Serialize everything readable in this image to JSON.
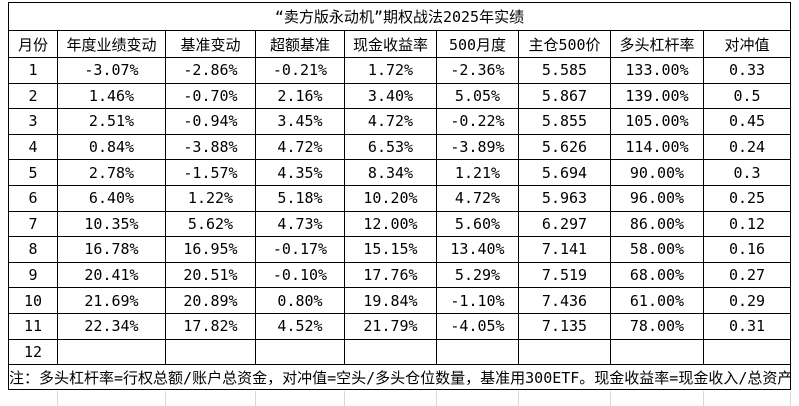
{
  "table": {
    "title": "“卖方版永动机”期权战法2025年实绩",
    "columns": [
      "月份",
      "年度业绩变动",
      "基准变动",
      "超额基准",
      "现金收益率",
      "500月度",
      "主仓500价",
      "多头杠杆率",
      "对冲值"
    ],
    "rows": [
      [
        "1",
        "-3.07%",
        "-2.86%",
        "-0.21%",
        "1.72%",
        "-2.36%",
        "5.585",
        "133.00%",
        "0.33"
      ],
      [
        "2",
        "1.46%",
        "-0.70%",
        "2.16%",
        "3.40%",
        "5.05%",
        "5.867",
        "139.00%",
        "0.5"
      ],
      [
        "3",
        "2.51%",
        "-0.94%",
        "3.45%",
        "4.72%",
        "-0.22%",
        "5.855",
        "105.00%",
        "0.45"
      ],
      [
        "4",
        "0.84%",
        "-3.88%",
        "4.72%",
        "6.53%",
        "-3.89%",
        "5.626",
        "114.00%",
        "0.24"
      ],
      [
        "5",
        "2.78%",
        "-1.57%",
        "4.35%",
        "8.34%",
        "1.21%",
        "5.694",
        "90.00%",
        "0.3"
      ],
      [
        "6",
        "6.40%",
        "1.22%",
        "5.18%",
        "10.20%",
        "4.72%",
        "5.963",
        "96.00%",
        "0.25"
      ],
      [
        "7",
        "10.35%",
        "5.62%",
        "4.73%",
        "12.00%",
        "5.60%",
        "6.297",
        "86.00%",
        "0.12"
      ],
      [
        "8",
        "16.78%",
        "16.95%",
        "-0.17%",
        "15.15%",
        "13.40%",
        "7.141",
        "58.00%",
        "0.16"
      ],
      [
        "9",
        "20.41%",
        "20.51%",
        "-0.10%",
        "17.76%",
        "5.29%",
        "7.519",
        "68.00%",
        "0.27"
      ],
      [
        "10",
        "21.69%",
        "20.89%",
        "0.80%",
        "19.84%",
        "-1.10%",
        "7.436",
        "61.00%",
        "0.29"
      ],
      [
        "11",
        "22.34%",
        "17.82%",
        "4.52%",
        "21.79%",
        "-4.05%",
        "7.135",
        "78.00%",
        "0.31"
      ],
      [
        "12",
        "",
        "",
        "",
        "",
        "",
        "",
        "",
        ""
      ]
    ],
    "note": "注：多头杠杆率=行权总额/账户总资金，对冲值=空头/多头仓位数量，基准用300ETF。现金收益率=现金收入/总资产"
  },
  "colors": {
    "border": "#000000",
    "text": "#000000",
    "gridline": "#d9d9d9",
    "background": "#ffffff"
  }
}
